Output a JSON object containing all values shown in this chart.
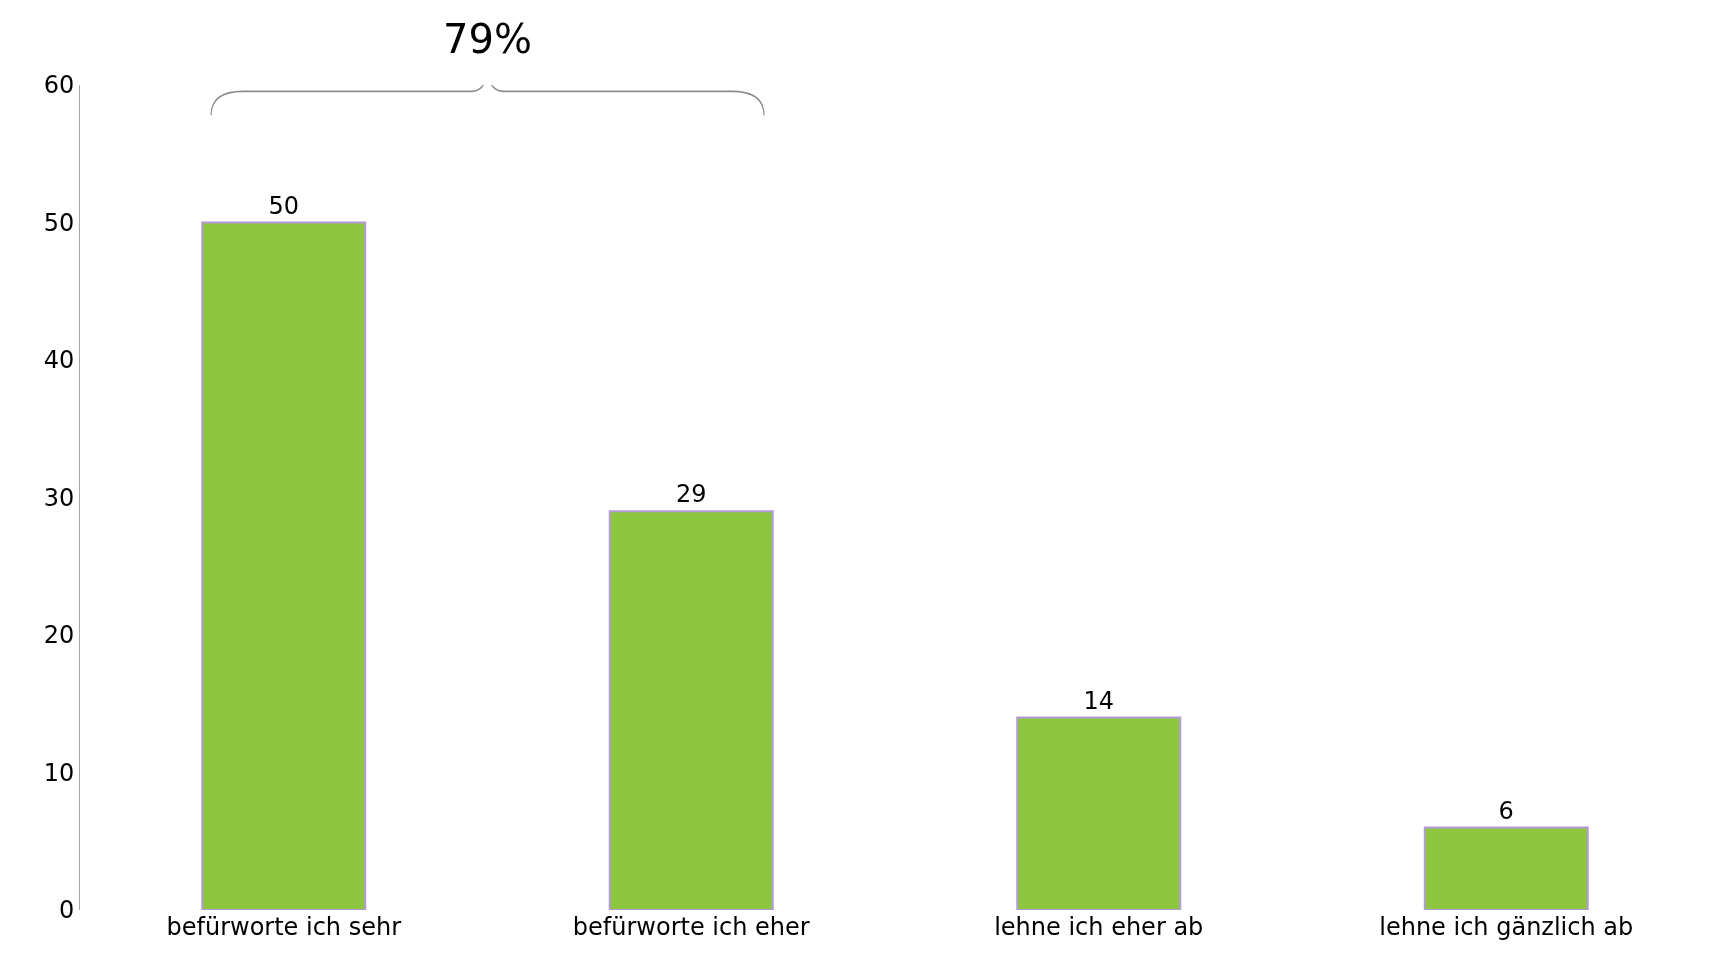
{
  "chart_data": {
    "type": "bar",
    "categories": [
      "befürworte ich sehr",
      "befürworte ich eher",
      "lehne ich eher ab",
      "lehne ich gänzlich ab"
    ],
    "values": [
      50,
      29,
      14,
      6
    ],
    "color": "#8dc63f",
    "ylim": [
      0,
      60
    ],
    "yticks": [
      0,
      10,
      20,
      30,
      40,
      50,
      60
    ],
    "data_labels": true,
    "annotations": [
      "79%"
    ]
  }
}
